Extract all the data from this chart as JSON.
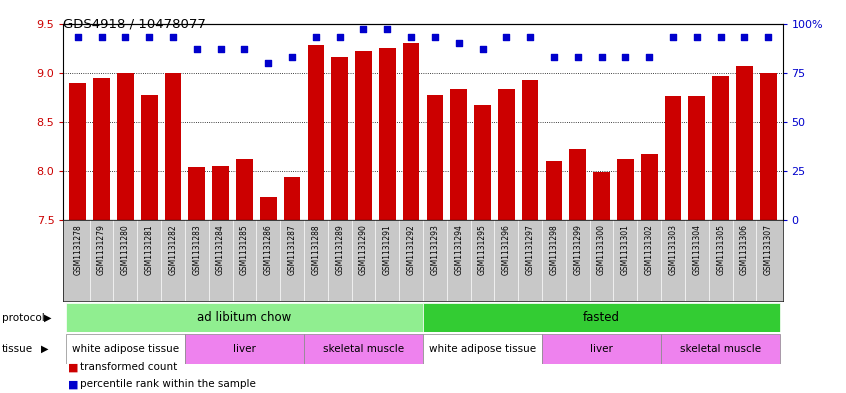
{
  "title": "GDS4918 / 10478077",
  "samples": [
    "GSM1131278",
    "GSM1131279",
    "GSM1131280",
    "GSM1131281",
    "GSM1131282",
    "GSM1131283",
    "GSM1131284",
    "GSM1131285",
    "GSM1131286",
    "GSM1131287",
    "GSM1131288",
    "GSM1131289",
    "GSM1131290",
    "GSM1131291",
    "GSM1131292",
    "GSM1131293",
    "GSM1131294",
    "GSM1131295",
    "GSM1131296",
    "GSM1131297",
    "GSM1131298",
    "GSM1131299",
    "GSM1131300",
    "GSM1131301",
    "GSM1131302",
    "GSM1131303",
    "GSM1131304",
    "GSM1131305",
    "GSM1131306",
    "GSM1131307"
  ],
  "bar_values": [
    8.9,
    8.95,
    9.0,
    8.77,
    9.0,
    8.04,
    8.05,
    8.12,
    7.73,
    7.94,
    9.28,
    9.16,
    9.22,
    9.25,
    9.3,
    8.77,
    8.83,
    8.67,
    8.83,
    8.93,
    8.1,
    8.22,
    7.99,
    8.12,
    8.17,
    8.76,
    8.76,
    8.97,
    9.07,
    9.0
  ],
  "percentile_values": [
    93,
    93,
    93,
    93,
    93,
    87,
    87,
    87,
    80,
    83,
    93,
    93,
    97,
    97,
    93,
    93,
    90,
    87,
    93,
    93,
    83,
    83,
    83,
    83,
    83,
    93,
    93,
    93,
    93,
    93
  ],
  "ylim_left": [
    7.5,
    9.5
  ],
  "ylim_right": [
    0,
    100
  ],
  "yticks_left": [
    7.5,
    8.0,
    8.5,
    9.0,
    9.5
  ],
  "yticks_right": [
    0,
    25,
    50,
    75,
    100
  ],
  "ytick_labels_right": [
    "0",
    "25",
    "50",
    "75",
    "100%"
  ],
  "bar_color": "#cc0000",
  "dot_color": "#0000cc",
  "protocol_groups": [
    {
      "label": "ad libitum chow",
      "start": 0,
      "end": 14,
      "color": "#90ee90"
    },
    {
      "label": "fasted",
      "start": 15,
      "end": 29,
      "color": "#33cc33"
    }
  ],
  "tissue_groups": [
    {
      "label": "white adipose tissue",
      "start": 0,
      "end": 4,
      "color": "#ffffff"
    },
    {
      "label": "liver",
      "start": 5,
      "end": 9,
      "color": "#ee82ee"
    },
    {
      "label": "skeletal muscle",
      "start": 10,
      "end": 14,
      "color": "#ee82ee"
    },
    {
      "label": "white adipose tissue",
      "start": 15,
      "end": 19,
      "color": "#ffffff"
    },
    {
      "label": "liver",
      "start": 20,
      "end": 24,
      "color": "#ee82ee"
    },
    {
      "label": "skeletal muscle",
      "start": 25,
      "end": 29,
      "color": "#ee82ee"
    }
  ],
  "legend_items": [
    {
      "label": "transformed count",
      "color": "#cc0000"
    },
    {
      "label": "percentile rank within the sample",
      "color": "#0000cc"
    }
  ],
  "xtick_bg_color": "#c8c8c8",
  "fig_bg_color": "#ffffff"
}
